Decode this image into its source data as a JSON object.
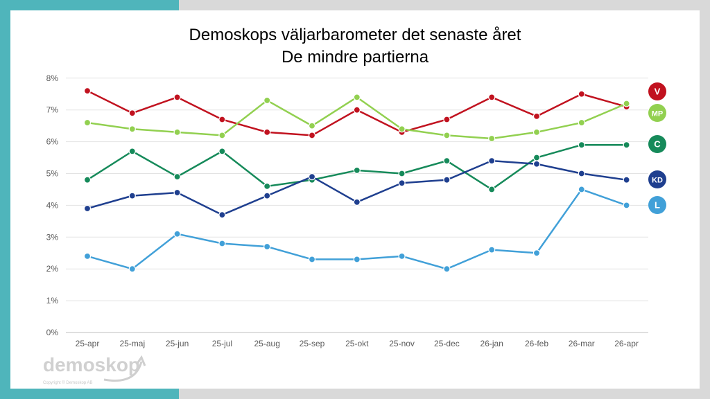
{
  "chart_data": {
    "type": "line",
    "title": "Demoskops väljarbarometer det senaste året",
    "subtitle": "De mindre partierna",
    "xlabel": "",
    "ylabel": "",
    "ylim": [
      0,
      8
    ],
    "y_ticks": [
      "0%",
      "1%",
      "2%",
      "3%",
      "4%",
      "5%",
      "6%",
      "7%",
      "8%"
    ],
    "grid": true,
    "legend_placement": "right",
    "categories": [
      "25-apr",
      "25-maj",
      "25-jun",
      "25-jul",
      "25-aug",
      "25-sep",
      "25-okt",
      "25-nov",
      "25-dec",
      "26-jan",
      "26-feb",
      "26-mar",
      "26-apr"
    ],
    "series": [
      {
        "name": "V",
        "color": "#c1121f",
        "values": [
          7.6,
          6.9,
          7.4,
          6.7,
          6.3,
          6.2,
          7.0,
          6.3,
          6.7,
          7.4,
          6.8,
          7.5,
          7.1
        ]
      },
      {
        "name": "MP",
        "color": "#92d050",
        "values": [
          6.6,
          6.4,
          6.3,
          6.2,
          7.3,
          6.5,
          7.4,
          6.4,
          6.2,
          6.1,
          6.3,
          6.6,
          7.2
        ]
      },
      {
        "name": "C",
        "color": "#168a5a",
        "values": [
          4.8,
          5.7,
          4.9,
          5.7,
          4.6,
          4.8,
          5.1,
          5.0,
          5.4,
          4.5,
          5.5,
          5.9,
          5.9
        ]
      },
      {
        "name": "KD",
        "color": "#1f3f8f",
        "values": [
          3.9,
          4.3,
          4.4,
          3.7,
          4.3,
          4.9,
          4.1,
          4.7,
          4.8,
          5.4,
          5.3,
          5.0,
          4.8
        ]
      },
      {
        "name": "L",
        "color": "#41a0d8",
        "values": [
          2.4,
          2.0,
          3.1,
          2.8,
          2.7,
          2.3,
          2.3,
          2.4,
          2.0,
          2.6,
          2.5,
          4.5,
          4.0
        ]
      }
    ]
  },
  "logo": {
    "name": "demoskop",
    "copyright": "Copyright © Demoskop AB"
  }
}
